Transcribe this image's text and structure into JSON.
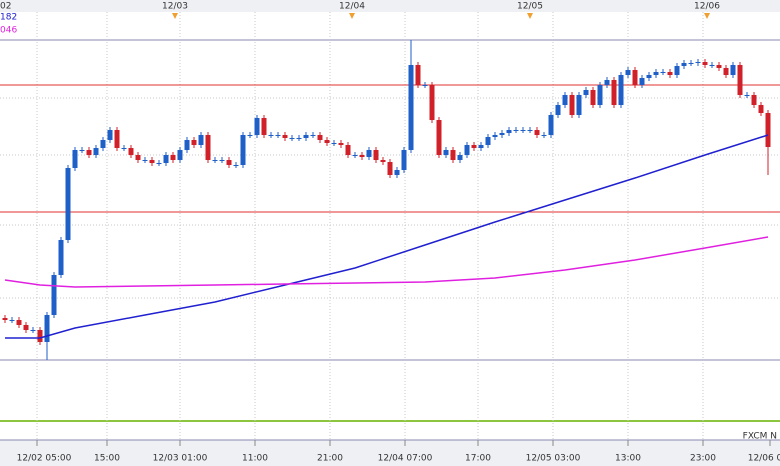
{
  "chart_data": {
    "type": "candlestick",
    "top_labels": [
      "02",
      "12/03",
      "12/04",
      "12/05",
      "12/06"
    ],
    "legend_texts": [
      "182",
      "046"
    ],
    "categories": [
      "12/02 05:00",
      "15:00",
      "12/03 01:00",
      "11:00",
      "21:00",
      "12/04 07:00",
      "17:00",
      "12/05 03:00",
      "13:00",
      "23:00",
      "12/06 0"
    ],
    "source": "FXCM N",
    "ylim": [
      0,
      320
    ],
    "up_color": "#1f5fc8",
    "down_color": "#d0202a",
    "open": [
      42,
      40,
      40,
      35,
      30,
      30,
      18,
      45,
      85,
      120,
      192,
      210,
      210,
      205,
      212,
      220,
      230,
      212,
      212,
      205,
      200,
      200,
      197,
      197,
      205,
      200,
      210,
      220,
      215,
      225,
      200,
      200,
      200,
      195,
      195,
      225,
      225,
      242,
      225,
      225,
      225,
      222,
      222,
      222,
      225,
      225,
      220,
      217,
      217,
      215,
      205,
      205,
      203,
      210,
      200,
      198,
      185,
      190,
      210,
      295,
      275,
      275,
      240,
      205,
      210,
      200,
      205,
      215,
      212,
      215,
      223,
      225,
      227,
      230,
      230,
      230,
      230,
      225,
      225,
      245,
      255,
      265,
      245,
      265,
      270,
      255,
      275,
      280,
      255,
      285,
      290,
      275,
      282,
      285,
      288,
      288,
      285,
      294,
      297,
      297,
      298,
      295,
      295,
      292,
      285,
      295,
      265,
      265,
      255,
      247
    ],
    "high": [
      45,
      43,
      43,
      38,
      33,
      33,
      48,
      88,
      123,
      195,
      213,
      213,
      213,
      215,
      223,
      233,
      233,
      215,
      215,
      208,
      203,
      203,
      200,
      208,
      208,
      213,
      223,
      223,
      228,
      228,
      203,
      203,
      203,
      198,
      228,
      228,
      245,
      245,
      228,
      228,
      228,
      225,
      225,
      228,
      228,
      228,
      223,
      220,
      220,
      218,
      208,
      208,
      213,
      213,
      203,
      201,
      193,
      213,
      320,
      298,
      278,
      278,
      243,
      213,
      213,
      208,
      218,
      218,
      218,
      226,
      228,
      230,
      233,
      233,
      233,
      233,
      233,
      228,
      248,
      258,
      268,
      268,
      268,
      273,
      273,
      278,
      283,
      283,
      288,
      293,
      293,
      285,
      288,
      291,
      291,
      291,
      297,
      300,
      300,
      301,
      301,
      298,
      298,
      295,
      298,
      298,
      268,
      268,
      258,
      250
    ],
    "low": [
      37,
      37,
      32,
      27,
      27,
      15,
      0,
      42,
      82,
      117,
      189,
      207,
      202,
      202,
      209,
      217,
      209,
      209,
      202,
      197,
      197,
      194,
      194,
      194,
      197,
      197,
      207,
      212,
      212,
      197,
      197,
      197,
      192,
      192,
      192,
      222,
      222,
      222,
      222,
      222,
      219,
      219,
      219,
      219,
      222,
      217,
      214,
      214,
      212,
      202,
      202,
      200,
      200,
      197,
      195,
      182,
      182,
      187,
      207,
      272,
      272,
      237,
      202,
      202,
      197,
      197,
      202,
      209,
      209,
      212,
      220,
      222,
      224,
      227,
      227,
      227,
      222,
      222,
      222,
      242,
      252,
      242,
      242,
      262,
      252,
      252,
      272,
      252,
      252,
      282,
      272,
      272,
      279,
      282,
      285,
      282,
      282,
      291,
      294,
      294,
      292,
      292,
      289,
      282,
      282,
      262,
      262,
      252,
      244,
      185
    ],
    "close": [
      40,
      40,
      35,
      30,
      30,
      18,
      45,
      85,
      120,
      192,
      210,
      210,
      205,
      212,
      220,
      230,
      212,
      212,
      205,
      200,
      200,
      197,
      197,
      205,
      200,
      210,
      220,
      215,
      225,
      200,
      200,
      200,
      195,
      195,
      225,
      225,
      242,
      225,
      225,
      225,
      222,
      222,
      222,
      225,
      225,
      220,
      217,
      217,
      215,
      205,
      205,
      203,
      210,
      200,
      198,
      185,
      190,
      210,
      295,
      275,
      275,
      240,
      205,
      210,
      200,
      205,
      215,
      212,
      215,
      223,
      225,
      227,
      230,
      230,
      230,
      230,
      225,
      225,
      245,
      255,
      265,
      245,
      265,
      270,
      255,
      275,
      280,
      255,
      285,
      290,
      275,
      282,
      285,
      288,
      288,
      285,
      294,
      297,
      297,
      298,
      295,
      295,
      292,
      285,
      295,
      265,
      265,
      255,
      247,
      213
    ],
    "series": [
      {
        "color": "#2020d0",
        "x": [
          0,
          5,
          10,
          20,
          30,
          40,
          50,
          60,
          70,
          80,
          90,
          100,
          109
        ],
        "values": [
          22,
          22,
          32,
          45,
          58,
          75,
          92,
          115,
          138,
          160,
          182,
          205,
          225
        ]
      },
      {
        "color": "#e020e0",
        "x": [
          0,
          5,
          10,
          20,
          30,
          40,
          50,
          60,
          70,
          80,
          90,
          100,
          109
        ],
        "values": [
          80,
          75,
          73,
          74,
          75,
          76,
          77,
          78,
          82,
          90,
          100,
          112,
          123
        ]
      }
    ],
    "levels": [
      {
        "value": 275,
        "color": "#e03030"
      },
      {
        "value": 148,
        "color": "#e03030"
      }
    ]
  }
}
